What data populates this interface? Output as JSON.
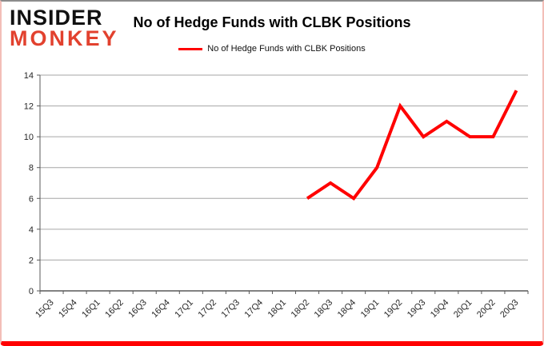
{
  "logo": {
    "line1": "INSIDER",
    "line2": "MONKEY"
  },
  "chart_data": {
    "type": "line",
    "title": "No of Hedge Funds with CLBK Positions",
    "categories": [
      "15Q3",
      "15Q4",
      "16Q1",
      "16Q2",
      "16Q3",
      "16Q4",
      "17Q1",
      "17Q2",
      "17Q3",
      "17Q4",
      "18Q1",
      "18Q2",
      "18Q3",
      "18Q4",
      "19Q1",
      "19Q2",
      "19Q3",
      "19Q4",
      "20Q1",
      "20Q2",
      "20Q3"
    ],
    "series": [
      {
        "name": "No of Hedge Funds with CLBK Positions",
        "color": "#ff0000",
        "values": [
          null,
          null,
          null,
          null,
          null,
          null,
          null,
          null,
          null,
          null,
          null,
          6,
          7,
          6,
          8,
          12,
          10,
          11,
          10,
          10,
          13
        ]
      }
    ],
    "xlabel": "",
    "ylabel": "",
    "ylim": [
      0,
      14
    ],
    "yticks": [
      0,
      2,
      4,
      6,
      8,
      10,
      12,
      14
    ],
    "grid": "horizontal",
    "legend_position": "top-center"
  },
  "theme": {
    "logo_red": "#e2412e",
    "bottom_bar_red": "#ff0000",
    "side_border_pink": "#f3beb8",
    "top_border_gray": "#8c8c8c",
    "grid_color": "#a6a6a6",
    "axis_color": "#595959",
    "tick_label_color": "#262626"
  }
}
